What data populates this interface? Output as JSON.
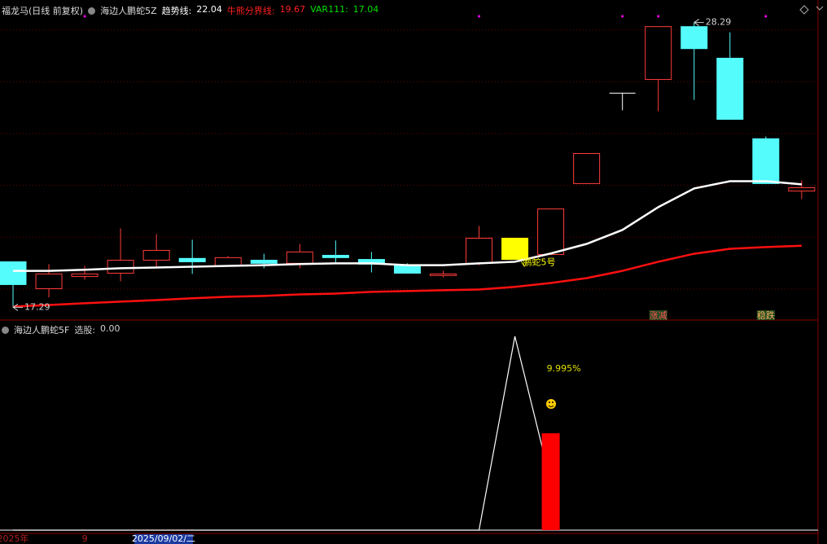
{
  "chart_data": [
    {
      "type": "candlestick",
      "title": "福龙马(日线 前复权)",
      "indicator": "海边人鹏蛇5Z",
      "legend": [
        {
          "label": "趋势线:",
          "value": 22.04,
          "color": "#ffffff"
        },
        {
          "label": "牛熊分界线:",
          "value": 19.67,
          "color": "#ff2020"
        },
        {
          "label": "VAR111:",
          "value": 17.04,
          "color": "#00e000"
        }
      ],
      "open": [
        19.05,
        18.01,
        18.48,
        18.61,
        19.11,
        19.18,
        18.89,
        19.11,
        18.99,
        19.3,
        19.14,
        18.92,
        18.52,
        18.99,
        19.14,
        19.33,
        22.07,
        25.56,
        26.09,
        28.13,
        26.91,
        23.8,
        21.78
      ],
      "high": [
        19.05,
        18.96,
        18.89,
        20.34,
        20.12,
        19.9,
        19.27,
        19.36,
        19.74,
        19.87,
        19.43,
        18.99,
        18.7,
        20.43,
        19.96,
        21.09,
        23.23,
        25.56,
        28.13,
        28.29,
        27.91,
        23.89,
        22.19
      ],
      "low": [
        17.29,
        17.67,
        18.36,
        18.3,
        18.86,
        18.58,
        18.89,
        18.8,
        18.8,
        18.96,
        18.64,
        18.61,
        18.45,
        18.92,
        19.14,
        19.33,
        22.07,
        24.9,
        24.86,
        25.3,
        24.55,
        22.07,
        21.47
      ],
      "close": [
        18.17,
        18.58,
        18.58,
        19.11,
        19.49,
        19.05,
        19.21,
        18.99,
        19.43,
        19.21,
        18.96,
        18.61,
        18.58,
        19.96,
        19.96,
        21.09,
        23.23,
        25.56,
        28.13,
        27.28,
        24.55,
        22.07,
        21.91
      ],
      "colors": [
        "#54fcfc",
        "#ff3c3c",
        "#ff3c3c",
        "#ff3c3c",
        "#ff3c3c",
        "#54fcfc",
        "#ff3c3c",
        "#54fcfc",
        "#ff3c3c",
        "#54fcfc",
        "#54fcfc",
        "#54fcfc",
        "#ff3c3c",
        "#ff3c3c",
        "#ffff00",
        "#ff3c3c",
        "#ff3c3c",
        "#ffffff",
        "#ff3c3c",
        "#54fcfc",
        "#54fcfc",
        "#54fcfc",
        "#ff3c3c"
      ],
      "hollow": [
        false,
        true,
        true,
        true,
        true,
        false,
        true,
        false,
        true,
        false,
        false,
        false,
        true,
        true,
        false,
        true,
        true,
        true,
        true,
        false,
        false,
        false,
        true
      ],
      "series": [
        {
          "name": "趋势线",
          "color": "#ffffff",
          "values": [
            18.7,
            18.7,
            18.74,
            18.8,
            18.83,
            18.86,
            18.89,
            18.92,
            18.96,
            18.99,
            18.99,
            18.92,
            18.92,
            18.99,
            19.05,
            19.37,
            19.74,
            20.28,
            21.16,
            21.88,
            22.16,
            22.16,
            22.04
          ]
        },
        {
          "name": "牛熊分界线",
          "color": "#ff1010",
          "values": [
            17.32,
            17.38,
            17.45,
            17.51,
            17.57,
            17.64,
            17.7,
            17.73,
            17.79,
            17.82,
            17.89,
            17.92,
            17.95,
            17.98,
            18.08,
            18.23,
            18.42,
            18.7,
            19.05,
            19.36,
            19.55,
            19.62,
            19.67
          ]
        }
      ],
      "annotations": [
        {
          "index": 19,
          "value": 28.29,
          "color": "#d0d0d0"
        },
        {
          "index": 0,
          "value": 17.29,
          "color": "#d0d0d0"
        }
      ],
      "text_annotations": [
        {
          "index": 14,
          "value": 19.05,
          "text": "鹏蛇5号",
          "color": "#ffff00"
        }
      ],
      "signals": [
        {
          "index": 18,
          "text": "涨减",
          "color": "#ff5050",
          "bg": "#1f4a1f"
        },
        {
          "index": 21,
          "text": "稳跌",
          "color": "#ffb060",
          "bg": "#1f4a1f"
        }
      ],
      "top_markers": {
        "color": "#ff00ff",
        "indices": [
          2,
          13,
          17,
          18,
          21
        ]
      },
      "ylim": [
        16.8,
        29.0
      ],
      "yticks": [
        18,
        20,
        22,
        24,
        26,
        28
      ],
      "grid": true
    },
    {
      "type": "combo",
      "title": "海边人鹏蛇5F",
      "legend": [
        {
          "label": "选股:",
          "value": 0,
          "value_label": "0.00",
          "color": "#d0d0d0"
        }
      ],
      "categories": [
        "2025年",
        null,
        "9",
        null,
        null,
        null,
        null,
        null,
        null,
        null,
        null,
        null,
        null,
        null,
        null,
        null,
        null,
        null,
        null,
        null,
        null,
        null,
        null
      ],
      "cursor_label": "2025/09/02/二",
      "series": [
        {
          "name": "line",
          "color": "#ffffff",
          "values": [
            0,
            0,
            0,
            0,
            0,
            0,
            0,
            0,
            0,
            0,
            0,
            0,
            0,
            0,
            20,
            5,
            null,
            null,
            null,
            null,
            null,
            null,
            null
          ]
        },
        {
          "name": "bar",
          "color": "#ff0000",
          "values": [
            null,
            null,
            null,
            null,
            null,
            null,
            null,
            null,
            null,
            null,
            null,
            null,
            null,
            null,
            null,
            9.995,
            null,
            null,
            null,
            null,
            null,
            null,
            null
          ],
          "value_labels": [
            null,
            null,
            null,
            null,
            null,
            null,
            null,
            null,
            null,
            null,
            null,
            null,
            null,
            null,
            null,
            "9.995%",
            null,
            null,
            null,
            null,
            null,
            null,
            null
          ]
        }
      ],
      "ylim": [
        0,
        20
      ]
    }
  ]
}
